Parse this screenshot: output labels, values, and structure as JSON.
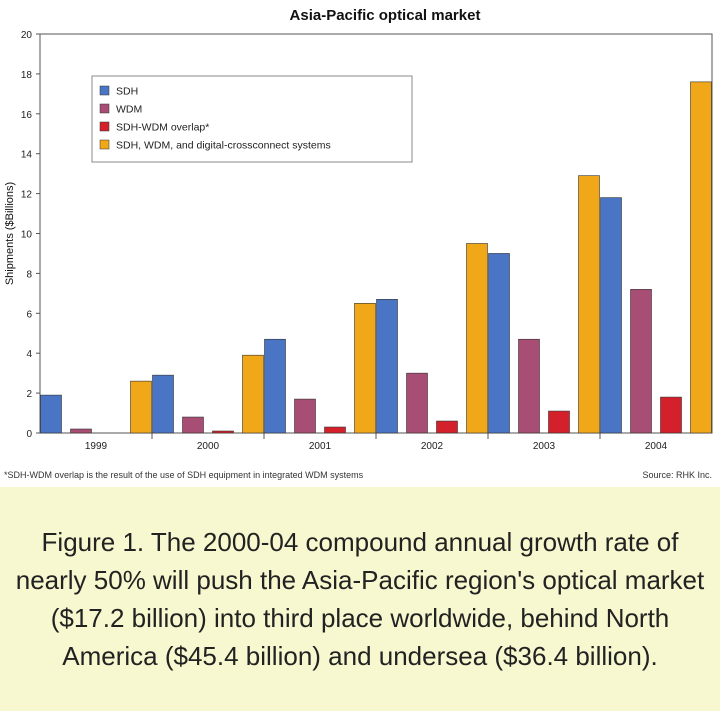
{
  "chart_data": {
    "type": "bar",
    "title": "Asia-Pacific optical market",
    "ylabel": "Shipments ($Billions)",
    "xlabel": "",
    "ylim": [
      0,
      20
    ],
    "yticks": [
      0,
      2,
      4,
      6,
      8,
      10,
      12,
      14,
      16,
      18,
      20
    ],
    "categories": [
      "1999",
      "2000",
      "2001",
      "2002",
      "2003",
      "2004"
    ],
    "legend_position": "top-left",
    "grid": false,
    "series": [
      {
        "name": "SDH",
        "color": "#4a74c4",
        "values": [
          1.9,
          2.9,
          4.7,
          6.7,
          9.0,
          11.8
        ]
      },
      {
        "name": "WDM",
        "color": "#a84d74",
        "values": [
          0.2,
          0.8,
          1.7,
          3.0,
          4.7,
          7.2
        ]
      },
      {
        "name": "SDH-WDM overlap*",
        "color": "#d4202a",
        "values": [
          0.0,
          0.1,
          0.3,
          0.6,
          1.1,
          1.8
        ]
      },
      {
        "name": "SDH, WDM, and digital-crossconnect systems",
        "color": "#f0a818",
        "values": [
          2.6,
          3.9,
          6.5,
          9.5,
          12.9,
          17.6
        ]
      }
    ]
  },
  "footnote": "*SDH-WDM overlap is the result of the use of SDH equipment in integrated WDM systems",
  "source": "Source: RHK Inc.",
  "caption": "Figure 1. The 2000-04 compound annual growth rate of nearly 50% will push the Asia-Pacific region's optical market ($17.2 billion) into third place worldwide, behind North America ($45.4 billion) and undersea ($36.4 billion)."
}
